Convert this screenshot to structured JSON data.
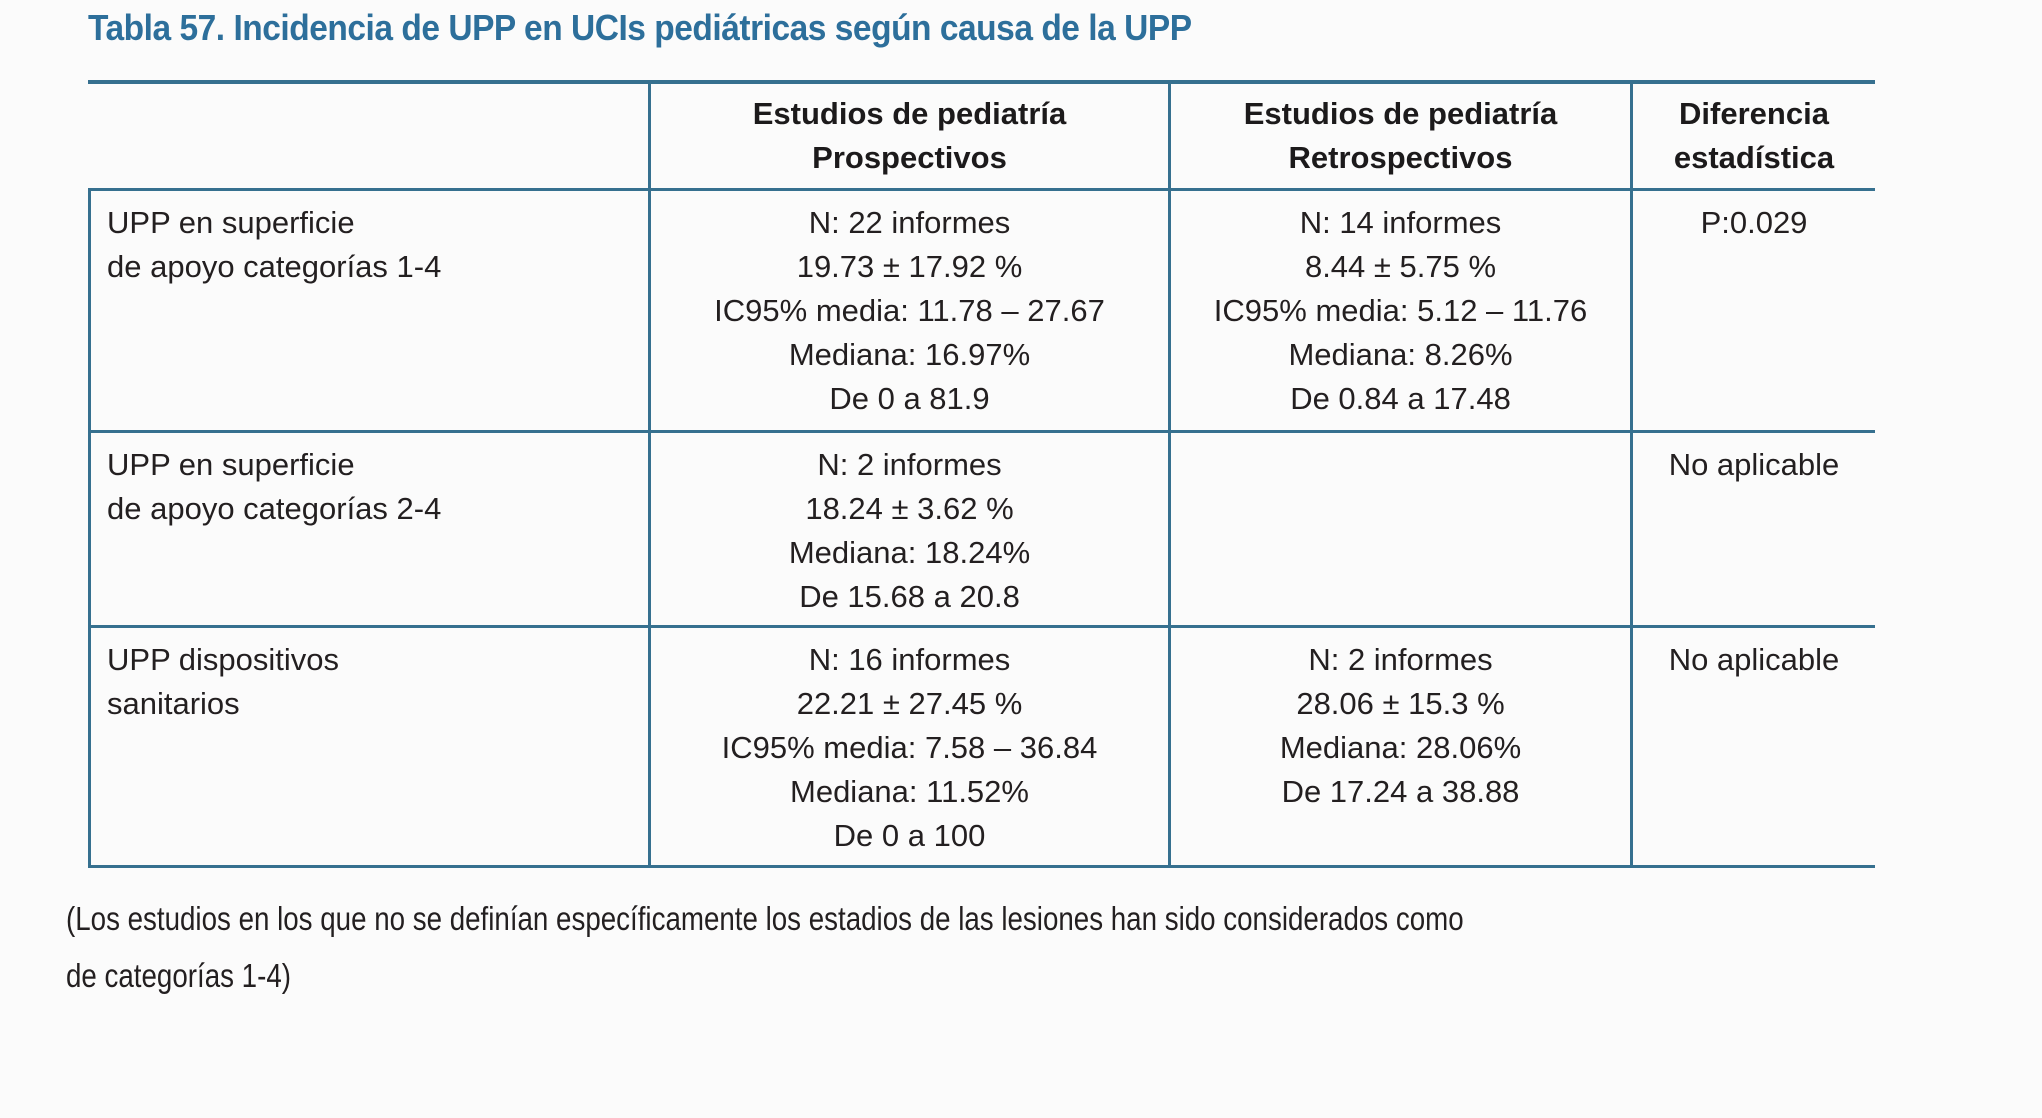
{
  "title": "Tabla 57. Incidencia de UPP en UCIs pediátricas según causa de la UPP",
  "colors": {
    "accent_blue": "#2d6f9b",
    "border_teal": "#36708f",
    "text": "#231f20"
  },
  "table": {
    "header": {
      "row_label": "",
      "prospectivos": "Estudios de pediatría\nProspectivos",
      "retrospectivos": "Estudios de pediatría\nRetrospectivos",
      "diferencia": "Diferencia\nestadística"
    },
    "rows": [
      {
        "label": "UPP en superficie\nde apoyo categorías 1-4",
        "prospectivos": "N: 22 informes\n19.73 ± 17.92 %\nIC95% media: 11.78 – 27.67\nMediana: 16.97%\nDe 0 a 81.9",
        "retrospectivos": "N: 14 informes\n8.44 ± 5.75 %\nIC95% media: 5.12 – 11.76\nMediana: 8.26%\nDe 0.84 a 17.48",
        "diferencia": "P:0.029"
      },
      {
        "label": "UPP en superficie\nde apoyo categorías 2-4",
        "prospectivos": "N: 2 informes\n18.24 ± 3.62 %\nMediana: 18.24%\nDe 15.68 a 20.8",
        "retrospectivos": "",
        "diferencia": "No aplicable"
      },
      {
        "label": "UPP dispositivos\nsanitarios",
        "prospectivos": "N: 16 informes\n22.21 ± 27.45 %\nIC95% media: 7.58 – 36.84\nMediana: 11.52%\nDe 0 a 100",
        "retrospectivos": "N: 2 informes\n28.06 ± 15.3 %\nMediana: 28.06%\nDe 17.24 a 38.88",
        "diferencia": "No aplicable"
      }
    ]
  },
  "footnote": "(Los estudios en los que no se definían específicamente los estadios de las lesiones han sido considerados como\nde categorías 1-4)"
}
